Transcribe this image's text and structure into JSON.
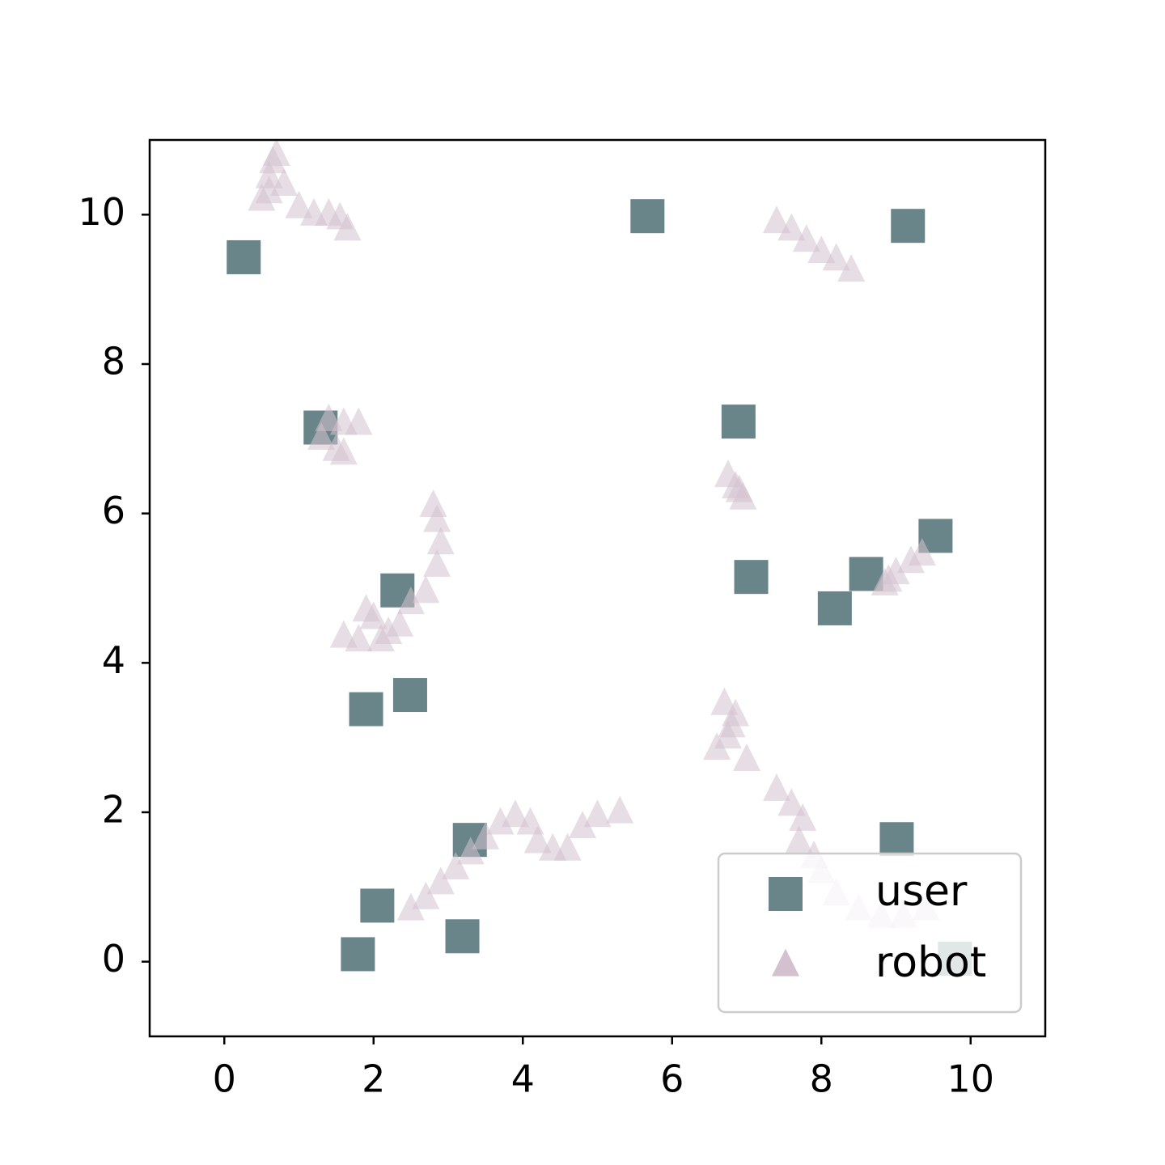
{
  "chart_data": {
    "type": "scatter",
    "xlim": [
      -1,
      11
    ],
    "ylim": [
      -1,
      11
    ],
    "xticks": [
      0,
      2,
      4,
      6,
      8,
      10
    ],
    "yticks": [
      0,
      2,
      4,
      6,
      8,
      10
    ],
    "grid": false,
    "legend": "lower right",
    "series": [
      {
        "name": "user",
        "color": "#6a8589",
        "marker": "square",
        "x": [
          0.26,
          5.67,
          9.16,
          1.29,
          6.89,
          7.06,
          9.53,
          8.6,
          8.18,
          2.32,
          1.9,
          2.49,
          3.29,
          2.05,
          1.79,
          3.19,
          9.01,
          9.79
        ],
        "y": [
          9.43,
          9.98,
          9.85,
          7.15,
          7.23,
          5.15,
          5.7,
          5.19,
          4.73,
          4.97,
          3.38,
          3.57,
          1.63,
          0.75,
          0.1,
          0.34,
          1.64,
          0.04
        ]
      },
      {
        "name": "robot",
        "color": "#d3c1cf",
        "marker": "triangle",
        "x": [
          0.6,
          0.6,
          0.65,
          0.7,
          0.5,
          0.8,
          1.0,
          1.2,
          1.4,
          1.55,
          1.65,
          7.4,
          7.6,
          7.8,
          8.0,
          8.2,
          8.4,
          1.4,
          1.6,
          1.8,
          1.3,
          1.5,
          1.6,
          6.75,
          6.85,
          6.95,
          6.9,
          8.9,
          9.0,
          9.2,
          9.35,
          8.85,
          1.6,
          1.8,
          1.9,
          2.0,
          2.1,
          2.2,
          2.35,
          2.5,
          2.7,
          2.85,
          2.9,
          2.85,
          2.8,
          6.6,
          6.75,
          6.8,
          6.7,
          6.85,
          7.0,
          7.4,
          7.6,
          7.75,
          7.7,
          7.9,
          8.0,
          8.2,
          8.5,
          8.8,
          9.1,
          9.4,
          2.5,
          2.7,
          2.9,
          3.1,
          3.3,
          3.5,
          3.7,
          3.9,
          4.1,
          4.2,
          4.4,
          4.6,
          4.8,
          5.0,
          5.3
        ],
        "y": [
          10.3,
          10.5,
          10.7,
          10.8,
          10.2,
          10.4,
          10.1,
          10.0,
          10.0,
          9.95,
          9.8,
          9.9,
          9.8,
          9.65,
          9.5,
          9.4,
          9.25,
          7.25,
          7.2,
          7.2,
          7.0,
          6.85,
          6.8,
          6.5,
          6.35,
          6.2,
          6.3,
          5.1,
          5.2,
          5.35,
          5.45,
          5.05,
          4.35,
          4.3,
          4.7,
          4.6,
          4.3,
          4.4,
          4.5,
          4.8,
          4.95,
          5.3,
          5.6,
          5.9,
          6.1,
          2.85,
          3.0,
          3.15,
          3.45,
          3.3,
          2.7,
          2.3,
          2.1,
          1.9,
          1.6,
          1.4,
          1.2,
          0.9,
          0.7,
          0.6,
          0.6,
          0.7,
          0.7,
          0.85,
          1.05,
          1.25,
          1.45,
          1.65,
          1.85,
          1.95,
          1.85,
          1.6,
          1.5,
          1.5,
          1.8,
          1.95,
          2.0
        ]
      }
    ]
  }
}
